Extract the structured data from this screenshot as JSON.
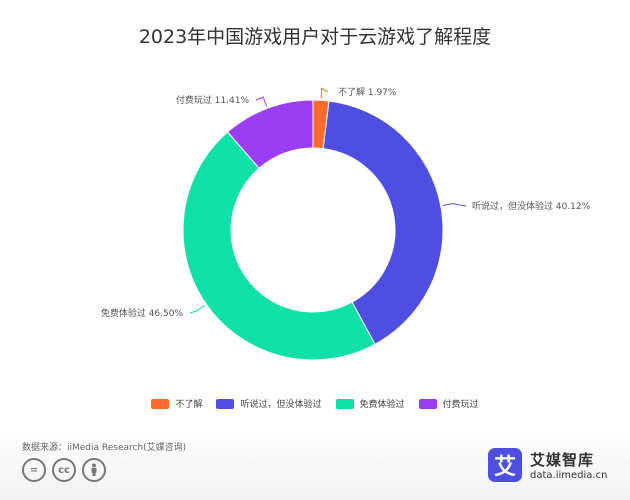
{
  "chart_data": {
    "type": "pie",
    "title": "2023年中国游戏用户对于云游戏了解程度",
    "categories": [
      "不了解",
      "听说过，但没体验过",
      "免费体验过",
      "付费玩过"
    ],
    "values": [
      1.97,
      40.12,
      46.5,
      11.41
    ],
    "unit": "%",
    "data_labels": [
      "不了解 1.97%",
      "听说过，但没体验过 40.12%",
      "免费体验过 46.50%",
      "付费玩过 11.41%"
    ],
    "colors": [
      "#ff6b2c",
      "#4e4fe0",
      "#0ee0a8",
      "#9b3df5"
    ],
    "legend_position": "bottom",
    "donut": true
  },
  "footer": {
    "source": "数据来源：iiMedia Research(艾媒咨询)",
    "brand_icon": "艾",
    "brand_name": "艾媒智库",
    "brand_url": "data.iimedia.cn",
    "cc_icons": [
      "equals-icon",
      "cc-icon",
      "person-icon"
    ]
  }
}
